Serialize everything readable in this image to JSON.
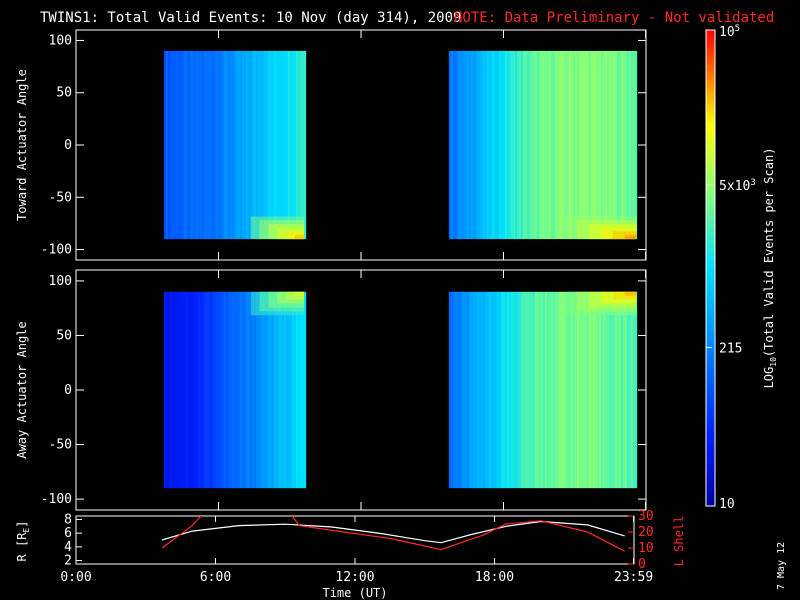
{
  "header": {
    "title": "TWINS1: Total Valid Events: 10 Nov (day 314), 2009",
    "note": "NOTE: Data Preliminary - Not validated"
  },
  "footer": {
    "date_stamp": "7 May 12"
  },
  "colors": {
    "background": "#000000",
    "axis": "#ffffff",
    "note": "#ff2a2a",
    "r_line": "#ffffff",
    "l_shell_line": "#ff2a2a"
  },
  "chart_data": [
    {
      "type": "heatmap",
      "panel": "toward",
      "ylabel": "Toward Actuator Angle",
      "xlim": [
        0,
        24
      ],
      "ylim": [
        -110,
        110
      ],
      "yticks": [
        100,
        50,
        0,
        -50,
        -100
      ],
      "ytick_labels": [
        "100",
        "50",
        "0",
        "-50",
        "-100"
      ],
      "blocks": [
        {
          "t_start": 3.7,
          "t_end": 9.6,
          "angle_min": -90,
          "angle_max": 90,
          "profile": [
            2.0,
            2.08,
            2.1,
            2.15,
            2.28,
            2.42,
            2.6,
            2.8,
            2.95,
            3.1,
            3.3
          ],
          "corner_enhancement": "bottom-right"
        },
        {
          "t_start": 15.7,
          "t_end": 23.6,
          "angle_min": -90,
          "angle_max": 90,
          "profile": [
            2.2,
            2.5,
            2.8,
            3.1,
            3.35,
            3.5,
            3.6,
            3.62,
            3.6,
            3.55,
            3.45
          ],
          "corner_enhancement": "bottom-right"
        }
      ]
    },
    {
      "type": "heatmap",
      "panel": "away",
      "ylabel": "Away Actuator Angle",
      "xlim": [
        0,
        24
      ],
      "ylim": [
        -110,
        110
      ],
      "yticks": [
        100,
        50,
        0,
        -50,
        -100
      ],
      "ytick_labels": [
        "100",
        "50",
        "0",
        "-50",
        "-100"
      ],
      "blocks": [
        {
          "t_start": 3.7,
          "t_end": 9.6,
          "angle_min": -90,
          "angle_max": 90,
          "profile": [
            1.5,
            1.55,
            1.6,
            1.75,
            1.95,
            2.1,
            2.25,
            2.45,
            2.65,
            2.85,
            3.0
          ],
          "corner_enhancement": "top-right"
        },
        {
          "t_start": 15.7,
          "t_end": 23.6,
          "angle_min": -90,
          "angle_max": 90,
          "profile": [
            2.1,
            2.45,
            2.75,
            3.05,
            3.3,
            3.45,
            3.55,
            3.55,
            3.5,
            3.45,
            3.35
          ],
          "corner_enhancement": "top-right"
        }
      ]
    },
    {
      "type": "line",
      "panel": "orbit",
      "xlabel": "Time (UT)",
      "xlim": [
        0,
        24
      ],
      "xticks": [
        0,
        6,
        12,
        18,
        23.983
      ],
      "xtick_labels": [
        "0:00",
        "6:00",
        "12:00",
        "18:00",
        "23:59"
      ],
      "ylabel_left": "R [R",
      "ylabel_left_sub": "E",
      "ylabel_left_end": "]",
      "ylim_left": [
        1.5,
        8.5
      ],
      "yticks_left": [
        2,
        4,
        6,
        8
      ],
      "ylabel_right": "L Shell",
      "ylim_right": [
        0,
        30
      ],
      "yticks_right": [
        0,
        10,
        20,
        30
      ],
      "series": [
        {
          "axis": "left",
          "x": [
            3.7,
            5.0,
            7.0,
            9.0,
            11.0,
            13.0,
            15.0,
            15.7,
            17.0,
            18.5,
            20.0,
            22.0,
            23.6
          ],
          "y": [
            5.0,
            6.3,
            7.1,
            7.3,
            6.9,
            6.0,
            4.9,
            4.6,
            5.8,
            7.0,
            7.7,
            7.2,
            5.6
          ]
        },
        {
          "axis": "right",
          "x": [
            3.7,
            5.0,
            5.5,
            9.2,
            9.6,
            11.5,
            13.5,
            15.7,
            17.5,
            18.5,
            20.0,
            22.0,
            23.6
          ],
          "y": [
            10,
            24,
            32,
            32,
            24,
            20,
            16,
            9,
            18,
            25,
            27,
            20,
            8
          ]
        }
      ]
    }
  ],
  "colorbar": {
    "label_prefix": "LOG",
    "label_sub": "10",
    "label_rest": "(Total Valid Events per Scan)",
    "log_min": 1.0,
    "log_max": 5.0,
    "ticks": [
      {
        "log_value": 1.0,
        "base": "10",
        "sup": ""
      },
      {
        "log_value": 2.3324,
        "base": "215",
        "sup": ""
      },
      {
        "log_value": 3.699,
        "base": "5x10",
        "sup": "3"
      },
      {
        "log_value": 5.0,
        "base": "10",
        "sup": "5"
      }
    ]
  }
}
